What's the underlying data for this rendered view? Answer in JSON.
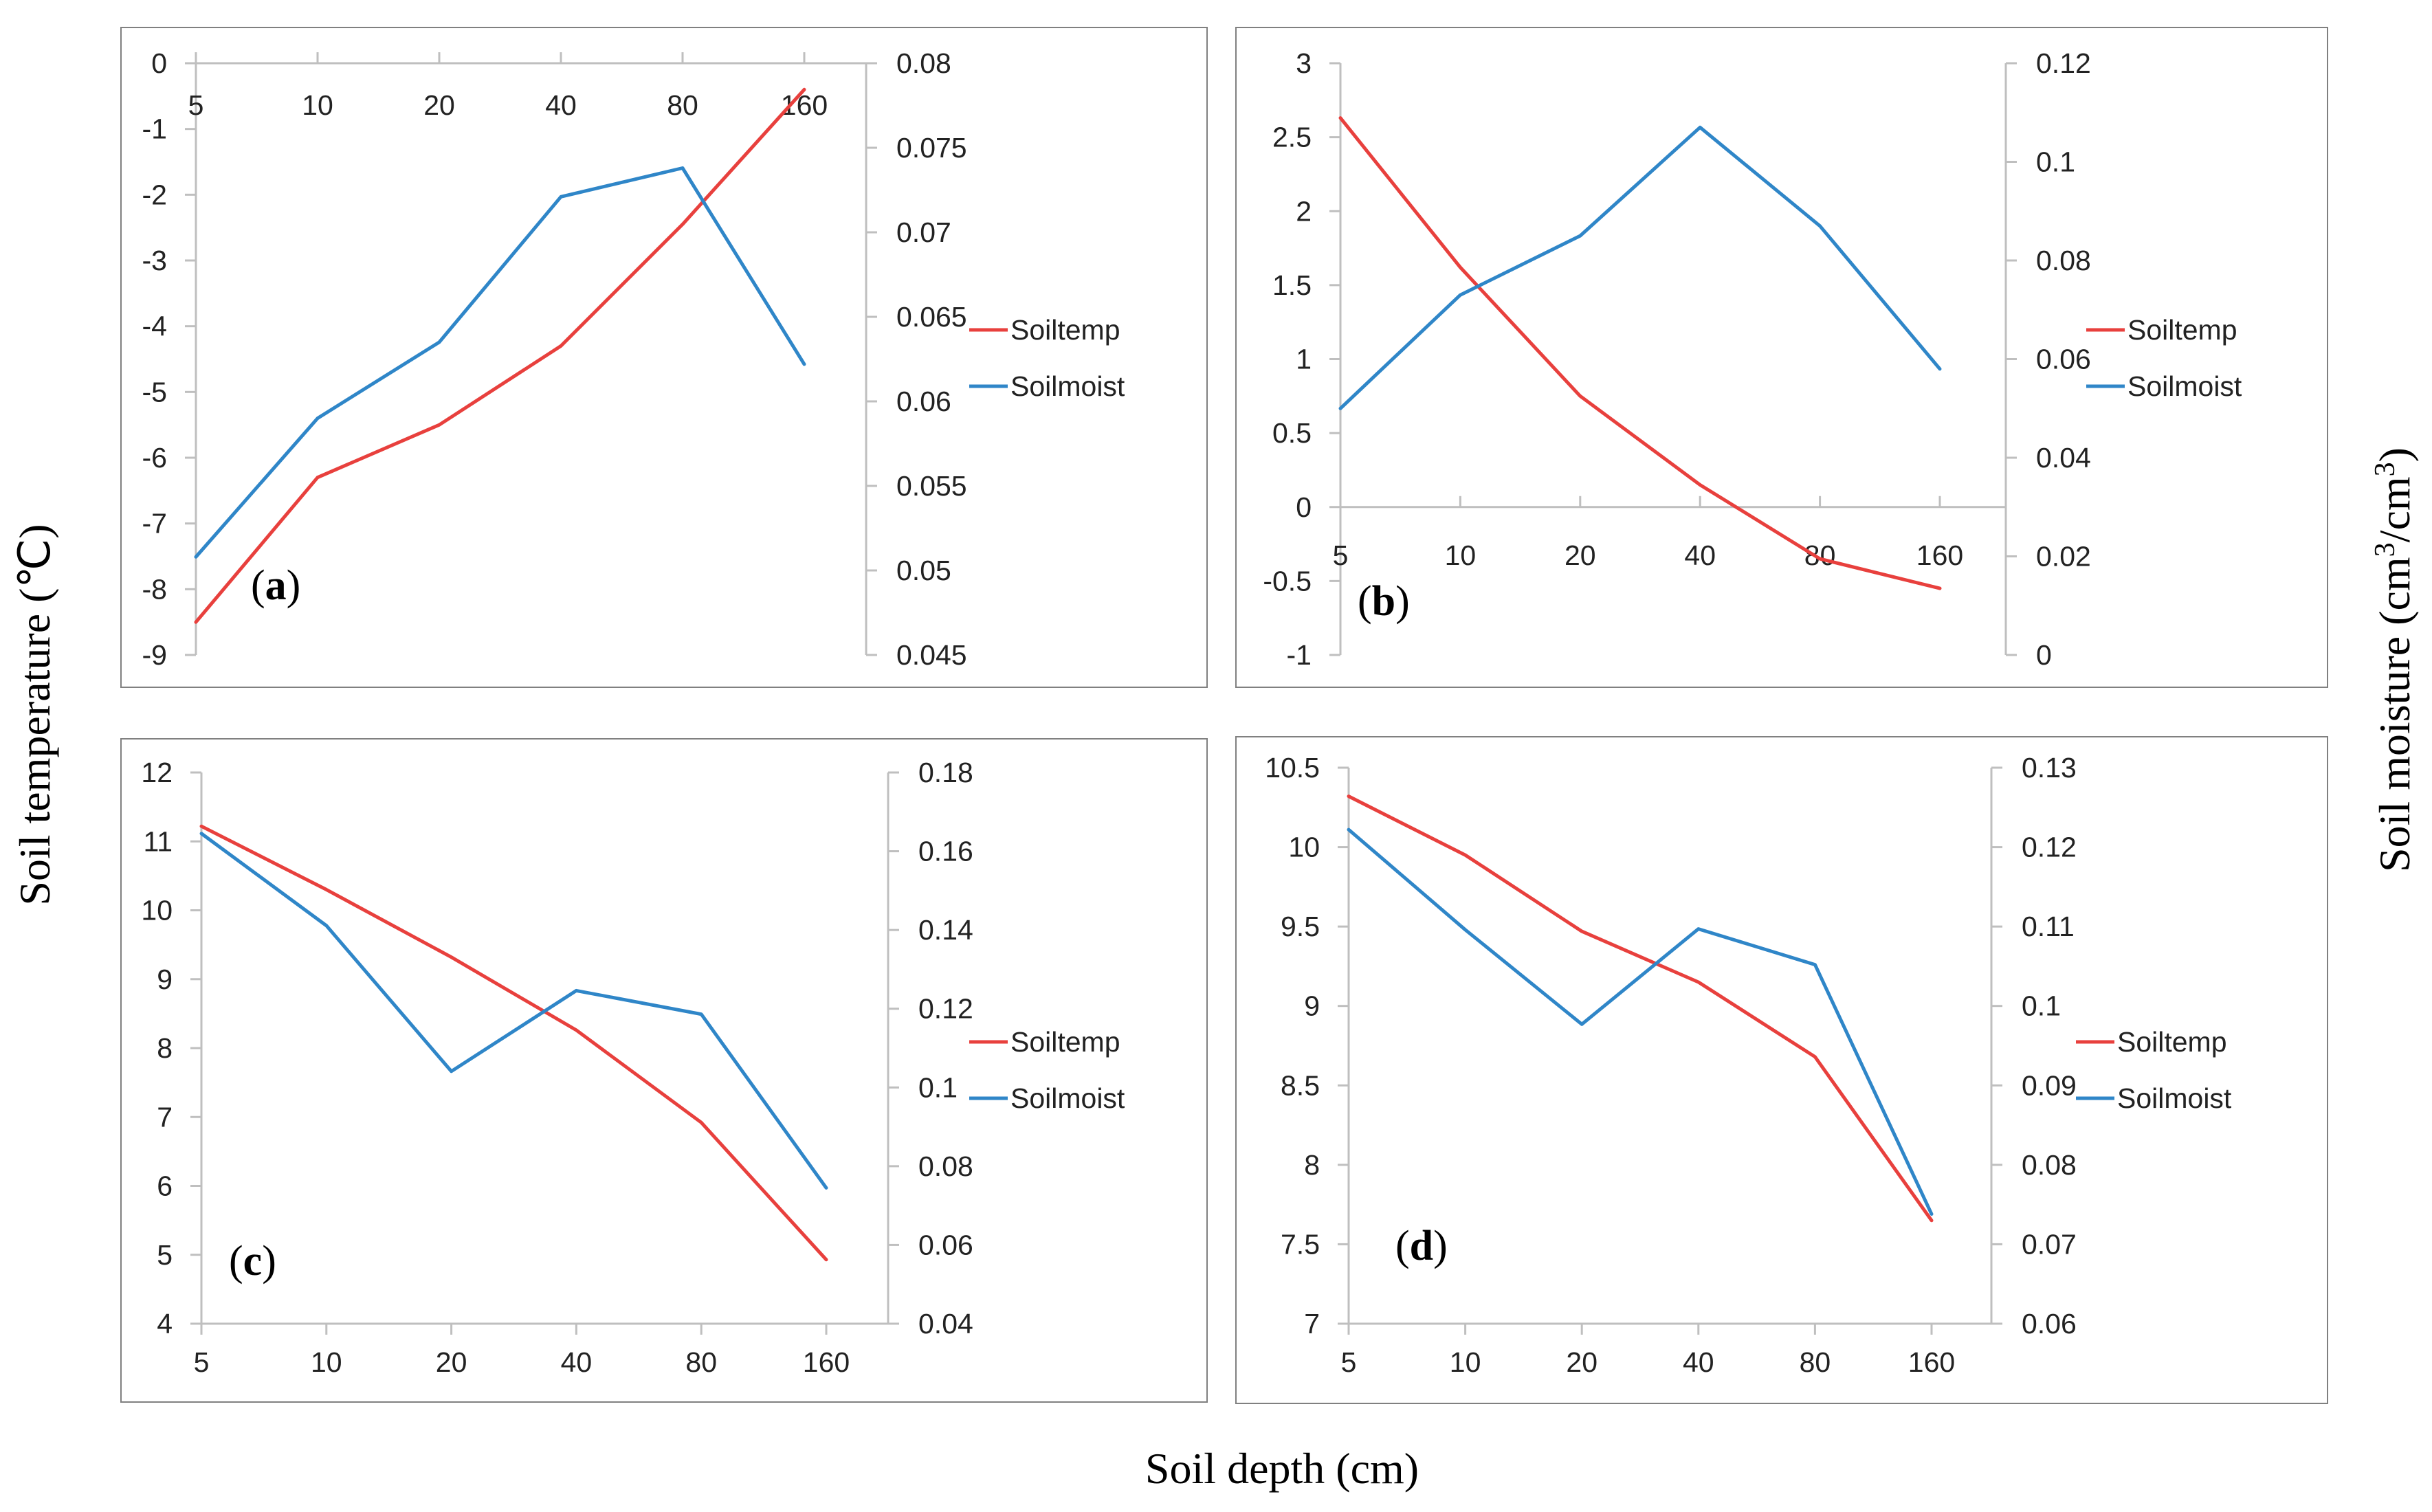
{
  "chart_data": [
    {
      "type": "line",
      "panel_label": "a",
      "categories": [
        "5",
        "10",
        "20",
        "40",
        "80",
        "160"
      ],
      "y_left": {
        "min": -9,
        "max": 0,
        "ticks": [
          "0",
          "-1",
          "-2",
          "-3",
          "-4",
          "-5",
          "-6",
          "-7",
          "-8",
          "-9"
        ]
      },
      "y_right": {
        "min": 0.045,
        "max": 0.08,
        "ticks": [
          "0.08",
          "0.075",
          "0.07",
          "0.065",
          "0.06",
          "0.055",
          "0.05",
          "0.045"
        ]
      },
      "x_axis_at": "top",
      "series": [
        {
          "name": "Soiltemp",
          "axis": "left",
          "color": "#e8403d",
          "values": [
            -8.5,
            -6.3,
            -5.5,
            -4.3,
            -2.45,
            -0.4
          ]
        },
        {
          "name": "Soilmoist",
          "axis": "right",
          "color": "#2f86c8",
          "values": [
            0.0508,
            0.059,
            0.0635,
            0.0721,
            0.0738,
            0.0622
          ]
        }
      ]
    },
    {
      "type": "line",
      "panel_label": "b",
      "categories": [
        "5",
        "10",
        "20",
        "40",
        "80",
        "160"
      ],
      "y_left": {
        "min": -1,
        "max": 3,
        "ticks": [
          "3",
          "2.5",
          "2",
          "1.5",
          "1",
          "0.5",
          "0",
          "-0.5",
          "-1"
        ]
      },
      "y_right": {
        "min": 0,
        "max": 0.12,
        "ticks": [
          "0.12",
          "0.1",
          "0.08",
          "0.06",
          "0.04",
          "0.02",
          "0"
        ]
      },
      "x_axis_at": "zero",
      "series": [
        {
          "name": "Soiltemp",
          "axis": "left",
          "color": "#e8403d",
          "values": [
            2.63,
            1.62,
            0.75,
            0.15,
            -0.35,
            -0.55
          ]
        },
        {
          "name": "Soilmoist",
          "axis": "right",
          "color": "#2f86c8",
          "values": [
            0.05,
            0.073,
            0.085,
            0.107,
            0.087,
            0.058
          ]
        }
      ]
    },
    {
      "type": "line",
      "panel_label": "c",
      "categories": [
        "5",
        "10",
        "20",
        "40",
        "80",
        "160"
      ],
      "y_left": {
        "min": 4,
        "max": 12,
        "ticks": [
          "12",
          "11",
          "10",
          "9",
          "8",
          "7",
          "6",
          "5",
          "4"
        ]
      },
      "y_right": {
        "min": 0.04,
        "max": 0.18,
        "ticks": [
          "0.18",
          "0.16",
          "0.14",
          "0.12",
          "0.1",
          "0.08",
          "0.06",
          "0.04"
        ]
      },
      "x_axis_at": "bottom",
      "series": [
        {
          "name": "Soiltemp",
          "axis": "left",
          "color": "#e8403d",
          "values": [
            11.22,
            10.3,
            9.32,
            8.26,
            6.92,
            4.93
          ]
        },
        {
          "name": "Soilmoist",
          "axis": "right",
          "color": "#2f86c8",
          "values": [
            0.1645,
            0.1411,
            0.1041,
            0.1246,
            0.1186,
            0.0745
          ]
        }
      ]
    },
    {
      "type": "line",
      "panel_label": "d",
      "categories": [
        "5",
        "10",
        "20",
        "40",
        "80",
        "160"
      ],
      "y_left": {
        "min": 7,
        "max": 10.5,
        "ticks": [
          "10.5",
          "10",
          "9.5",
          "9",
          "8.5",
          "8",
          "7.5",
          "7"
        ]
      },
      "y_right": {
        "min": 0.06,
        "max": 0.13,
        "ticks": [
          "0.13",
          "0.12",
          "0.11",
          "0.1",
          "0.09",
          "0.08",
          "0.07",
          "0.06"
        ]
      },
      "x_axis_at": "bottom",
      "series": [
        {
          "name": "Soiltemp",
          "axis": "left",
          "color": "#e8403d",
          "values": [
            10.32,
            9.95,
            9.47,
            9.15,
            8.68,
            7.65
          ]
        },
        {
          "name": "Soilmoist",
          "axis": "right",
          "color": "#2f86c8",
          "values": [
            0.1222,
            0.1096,
            0.0977,
            0.1097,
            0.1052,
            0.0738
          ]
        }
      ]
    }
  ],
  "axis_titles": {
    "left": "Soil temperature (℃)",
    "right_main": "Soil moisture (cm",
    "right_sup1": "3",
    "right_mid": "/cm",
    "right_sup2": "3",
    "right_end": ")",
    "bottom": "Soil depth (cm)"
  },
  "colors": {
    "soiltemp": "#e8403d",
    "soilmoist": "#2f86c8",
    "axis": "#bfbfbf",
    "frame": "#808080"
  }
}
